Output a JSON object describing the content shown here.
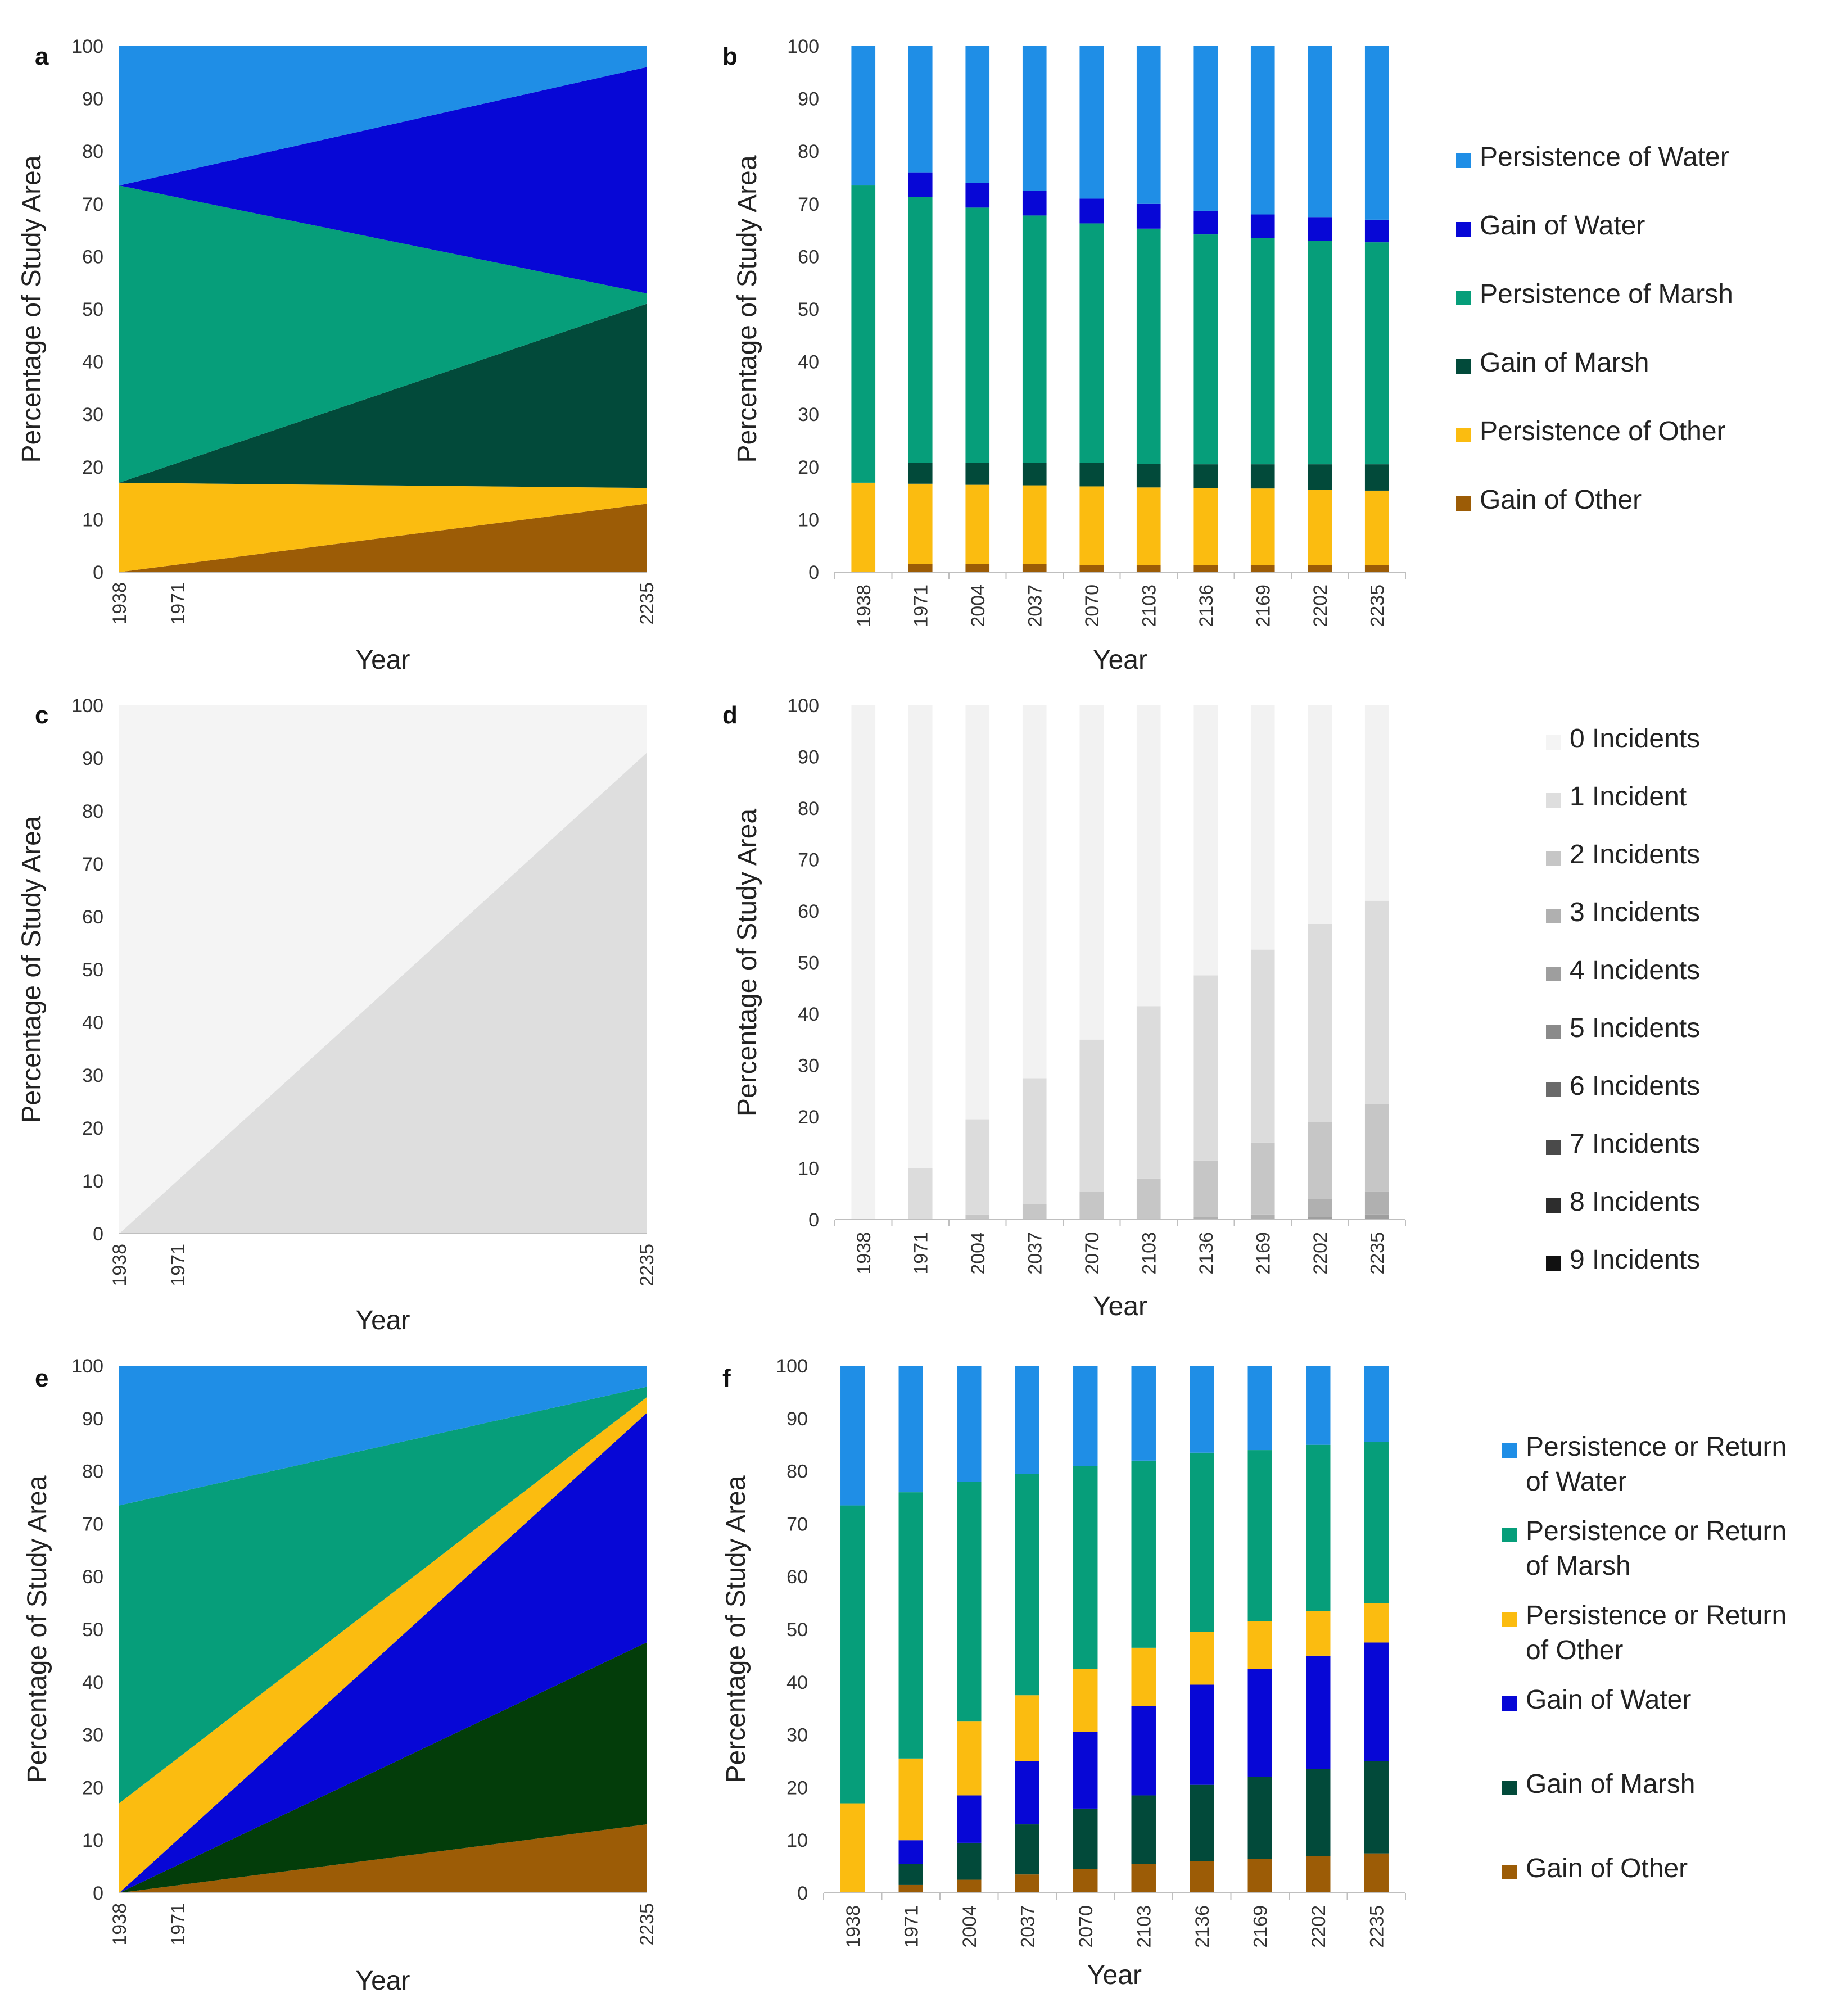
{
  "chart_data": [
    {
      "panel": "a",
      "type": "area",
      "stacked": true,
      "x": [
        1938,
        2235
      ],
      "x_ticks": [
        "1938",
        "1971",
        "2235"
      ],
      "xlabel": "Year",
      "ylabel": "Percentage of Study Area",
      "ylim": [
        0,
        100
      ],
      "y_ticks": [
        "0",
        "10",
        "20",
        "30",
        "40",
        "50",
        "60",
        "70",
        "80",
        "90",
        "100"
      ],
      "series": [
        {
          "name": "Gain of Other",
          "color": "#9c5c06",
          "values": [
            0,
            13
          ]
        },
        {
          "name": "Persistence of Other",
          "color": "#fbbc10",
          "values": [
            17,
            3
          ]
        },
        {
          "name": "Gain of Marsh",
          "color": "#024a3a",
          "values": [
            0,
            35
          ]
        },
        {
          "name": "Persistence of Marsh",
          "color": "#069e7a",
          "values": [
            56.5,
            2
          ]
        },
        {
          "name": "Gain of Water",
          "color": "#0707d6",
          "values": [
            0,
            43
          ]
        },
        {
          "name": "Persistence of Water",
          "color": "#1f8ee6",
          "values": [
            26.5,
            4
          ]
        }
      ]
    },
    {
      "panel": "b",
      "type": "bar",
      "stacked": true,
      "categories": [
        "1938",
        "1971",
        "2004",
        "2037",
        "2070",
        "2103",
        "2136",
        "2169",
        "2202",
        "2235"
      ],
      "xlabel": "Year",
      "ylabel": "Percentage of Study Area",
      "ylim": [
        0,
        100
      ],
      "y_ticks": [
        "0",
        "10",
        "20",
        "30",
        "40",
        "50",
        "60",
        "70",
        "80",
        "90",
        "100"
      ],
      "legend": "right",
      "series": [
        {
          "name": "Gain of Other",
          "color": "#9c5c06",
          "values": [
            0,
            1.5,
            1.5,
            1.5,
            1.3,
            1.3,
            1.3,
            1.3,
            1.3,
            1.3
          ]
        },
        {
          "name": "Persistence of Other",
          "color": "#fbbc10",
          "values": [
            17,
            15.3,
            15.1,
            15.0,
            15.0,
            14.8,
            14.7,
            14.6,
            14.4,
            14.2
          ]
        },
        {
          "name": "Gain of Marsh",
          "color": "#024a3a",
          "values": [
            0,
            4,
            4.2,
            4.3,
            4.5,
            4.5,
            4.5,
            4.6,
            4.8,
            5.0
          ]
        },
        {
          "name": "Persistence of Marsh",
          "color": "#069e7a",
          "values": [
            56.5,
            50.5,
            48.5,
            47,
            45.5,
            44.7,
            43.7,
            43,
            42.5,
            42.2
          ]
        },
        {
          "name": "Gain of Water",
          "color": "#0707d6",
          "values": [
            0,
            4.7,
            4.7,
            4.7,
            4.7,
            4.7,
            4.5,
            4.5,
            4.5,
            4.3
          ]
        },
        {
          "name": "Persistence of Water",
          "color": "#1f8ee6",
          "values": [
            26.5,
            24,
            26,
            27.5,
            29,
            30,
            31.3,
            32,
            32.5,
            33
          ]
        }
      ]
    },
    {
      "panel": "c",
      "type": "area",
      "stacked": true,
      "x": [
        1938,
        2235
      ],
      "x_ticks": [
        "1938",
        "1971",
        "2235"
      ],
      "xlabel": "Year",
      "ylabel": "Percentage of Study Area",
      "ylim": [
        0,
        100
      ],
      "y_ticks": [
        "0",
        "10",
        "20",
        "30",
        "40",
        "50",
        "60",
        "70",
        "80",
        "90",
        "100"
      ],
      "series": [
        {
          "name": "1 Incident",
          "color": "#dedede",
          "values": [
            0,
            91
          ]
        },
        {
          "name": "0 Incidents",
          "color": "#f4f4f4",
          "values": [
            100,
            9
          ]
        }
      ]
    },
    {
      "panel": "d",
      "type": "bar",
      "stacked": true,
      "categories": [
        "1938",
        "1971",
        "2004",
        "2037",
        "2070",
        "2103",
        "2136",
        "2169",
        "2202",
        "2235"
      ],
      "xlabel": "Year",
      "ylabel": "Percentage of Study Area",
      "ylim": [
        0,
        100
      ],
      "y_ticks": [
        "0",
        "10",
        "20",
        "30",
        "40",
        "50",
        "60",
        "70",
        "80",
        "90",
        "100"
      ],
      "legend": "right",
      "series": [
        {
          "name": "9 Incidents",
          "color": "#111111",
          "values": [
            0,
            0,
            0,
            0,
            0,
            0,
            0,
            0,
            0,
            0
          ]
        },
        {
          "name": "8 Incidents",
          "color": "#2d2d2d",
          "values": [
            0,
            0,
            0,
            0,
            0,
            0,
            0,
            0,
            0,
            0
          ]
        },
        {
          "name": "7 Incidents",
          "color": "#4a4a4a",
          "values": [
            0,
            0,
            0,
            0,
            0,
            0,
            0,
            0,
            0,
            0
          ]
        },
        {
          "name": "6 Incidents",
          "color": "#6a6a6a",
          "values": [
            0,
            0,
            0,
            0,
            0,
            0,
            0,
            0,
            0,
            0
          ]
        },
        {
          "name": "5 Incidents",
          "color": "#8a8a8a",
          "values": [
            0,
            0,
            0,
            0,
            0,
            0,
            0,
            0,
            0,
            0
          ]
        },
        {
          "name": "4 Incidents",
          "color": "#9e9e9e",
          "values": [
            0,
            0,
            0,
            0,
            0,
            0,
            0,
            0,
            0.5,
            1
          ]
        },
        {
          "name": "3 Incidents",
          "color": "#b0b0b0",
          "values": [
            0,
            0,
            0,
            0,
            0,
            0,
            0.5,
            1,
            3.5,
            4.5
          ]
        },
        {
          "name": "2 Incidents",
          "color": "#c6c6c6",
          "values": [
            0,
            0,
            1,
            3,
            5.5,
            8,
            11,
            14,
            15,
            17
          ]
        },
        {
          "name": "1 Incident",
          "color": "#dcdcdc",
          "values": [
            0,
            10,
            18.5,
            24.5,
            29.5,
            33.5,
            36,
            37.5,
            38.5,
            39.5
          ]
        },
        {
          "name": "0 Incidents",
          "color": "#f2f2f2",
          "values": [
            100,
            90,
            80.5,
            72.5,
            65,
            58.5,
            52.5,
            47.5,
            42.5,
            38
          ]
        }
      ]
    },
    {
      "panel": "e",
      "type": "area",
      "stacked": true,
      "x": [
        1938,
        2235
      ],
      "x_ticks": [
        "1938",
        "1971",
        "2235"
      ],
      "xlabel": "Year",
      "ylabel": "Percentage of Study Area",
      "ylim": [
        0,
        100
      ],
      "y_ticks": [
        "0",
        "10",
        "20",
        "30",
        "40",
        "50",
        "60",
        "70",
        "80",
        "90",
        "100"
      ],
      "series": [
        {
          "name": "Gain of Other",
          "color": "#9c5c06",
          "values": [
            0,
            13
          ]
        },
        {
          "name": "Gain of Marsh",
          "color": "#033d0a",
          "values": [
            0,
            34.5
          ]
        },
        {
          "name": "Gain of Water",
          "color": "#0707d6",
          "values": [
            0,
            43.5
          ]
        },
        {
          "name": "Persistence or Return of Other",
          "color": "#fbbc10",
          "values": [
            17,
            3
          ]
        },
        {
          "name": "Persistence or Return of Marsh",
          "color": "#069e7a",
          "values": [
            56.5,
            2
          ]
        },
        {
          "name": "Persistence or Return of Water",
          "color": "#1f8ee6",
          "values": [
            26.5,
            4
          ]
        }
      ]
    },
    {
      "panel": "f",
      "type": "bar",
      "stacked": true,
      "categories": [
        "1938",
        "1971",
        "2004",
        "2037",
        "2070",
        "2103",
        "2136",
        "2169",
        "2202",
        "2235"
      ],
      "xlabel": "Year",
      "ylabel": "Percentage of Study Area",
      "ylim": [
        0,
        100
      ],
      "y_ticks": [
        "0",
        "10",
        "20",
        "30",
        "40",
        "50",
        "60",
        "70",
        "80",
        "90",
        "100"
      ],
      "legend": "right",
      "series": [
        {
          "name": "Gain of Other",
          "color": "#9c5c06",
          "values": [
            0,
            1.5,
            2.5,
            3.5,
            4.5,
            5.5,
            6,
            6.5,
            7,
            7.5
          ]
        },
        {
          "name": "Gain of Marsh",
          "color": "#024a3a",
          "values": [
            0,
            4,
            7,
            9.5,
            11.5,
            13,
            14.5,
            15.5,
            16.5,
            17.5
          ]
        },
        {
          "name": "Gain of Water",
          "color": "#0707d6",
          "values": [
            0,
            4.5,
            9,
            12,
            14.5,
            17,
            19,
            20.5,
            21.5,
            22.5
          ]
        },
        {
          "name": "Persistence or Return of Other",
          "color": "#fbbc10",
          "values": [
            17,
            15.5,
            14,
            12.5,
            12,
            11,
            10,
            9,
            8.5,
            7.5
          ]
        },
        {
          "name": "Persistence or Return of Marsh",
          "color": "#069e7a",
          "values": [
            56.5,
            50.5,
            45.5,
            42,
            38.5,
            35.5,
            34,
            32.5,
            31.5,
            30.5
          ]
        },
        {
          "name": "Persistence or Return of Water",
          "color": "#1f8ee6",
          "values": [
            26.5,
            24,
            22,
            20.5,
            19,
            18,
            16.5,
            16,
            15,
            14.5
          ]
        }
      ]
    }
  ],
  "legends": {
    "ab": [
      "Persistence of Water",
      "Gain of Water",
      "Persistence of Marsh",
      "Gain of Marsh",
      "Persistence of Other",
      "Gain of Other"
    ],
    "ab_colors": [
      "#1f8ee6",
      "#0707d6",
      "#069e7a",
      "#024a3a",
      "#fbbc10",
      "#9c5c06"
    ],
    "cd": [
      "0 Incidents",
      "1 Incident",
      "2 Incidents",
      "3 Incidents",
      "4 Incidents",
      "5 Incidents",
      "6 Incidents",
      "7 Incidents",
      "8 Incidents",
      "9 Incidents"
    ],
    "cd_colors": [
      "#f4f4f4",
      "#dedede",
      "#c6c6c6",
      "#b0b0b0",
      "#9e9e9e",
      "#8a8a8a",
      "#6a6a6a",
      "#4a4a4a",
      "#2d2d2d",
      "#111111"
    ],
    "ef": [
      [
        "Persistence or Return",
        "of Water"
      ],
      [
        "Persistence or Return",
        "of Marsh"
      ],
      [
        "Persistence or Return",
        "of Other"
      ],
      [
        "Gain of Water"
      ],
      [
        "Gain of Marsh"
      ],
      [
        "Gain of Other"
      ]
    ],
    "ef_colors": [
      "#1f8ee6",
      "#069e7a",
      "#fbbc10",
      "#0707d6",
      "#024a3a",
      "#9c5c06"
    ]
  }
}
